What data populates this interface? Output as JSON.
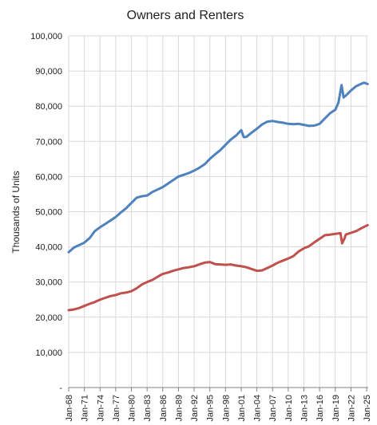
{
  "chart_data": {
    "type": "line",
    "title": "Owners and Renters",
    "xlabel": "",
    "ylabel": "Thousands of Units",
    "ylim": [
      0,
      100000
    ],
    "yticks": [
      0,
      10000,
      20000,
      30000,
      40000,
      50000,
      60000,
      70000,
      80000,
      90000,
      100000
    ],
    "ytick_labels": [
      "-",
      "10,000",
      "20,000",
      "30,000",
      "40,000",
      "50,000",
      "60,000",
      "70,000",
      "80,000",
      "90,000",
      "100,000"
    ],
    "xlim": [
      1968,
      2025.3
    ],
    "xticks": [
      1968,
      1971,
      1974,
      1977,
      1980,
      1983,
      1986,
      1989,
      1992,
      1995,
      1998,
      2001,
      2004,
      2007,
      2010,
      2013,
      2016,
      2019,
      2022,
      2025
    ],
    "xtick_labels": [
      "Jan-68",
      "Jan-71",
      "Jan-74",
      "Jan-77",
      "Jan-80",
      "Jan-83",
      "Jan-86",
      "Jan-89",
      "Jan-92",
      "Jan-95",
      "Jan-98",
      "Jan-01",
      "Jan-04",
      "Jan-07",
      "Jan-10",
      "Jan-13",
      "Jan-16",
      "Jan-19",
      "Jan-22",
      "Jan-25"
    ],
    "grid": true,
    "legend": "none",
    "series": [
      {
        "color": "#4f81bd",
        "points": [
          [
            1968,
            38500
          ],
          [
            1969,
            39800
          ],
          [
            1970,
            40500
          ],
          [
            1971,
            41200
          ],
          [
            1972,
            42500
          ],
          [
            1973,
            44500
          ],
          [
            1974,
            45600
          ],
          [
            1975,
            46500
          ],
          [
            1976,
            47500
          ],
          [
            1977,
            48500
          ],
          [
            1978,
            49800
          ],
          [
            1979,
            51000
          ],
          [
            1980,
            52500
          ],
          [
            1981,
            54000
          ],
          [
            1982,
            54400
          ],
          [
            1983,
            54600
          ],
          [
            1984,
            55600
          ],
          [
            1985,
            56300
          ],
          [
            1986,
            57000
          ],
          [
            1987,
            58000
          ],
          [
            1988,
            59000
          ],
          [
            1989,
            60000
          ],
          [
            1990,
            60500
          ],
          [
            1991,
            61000
          ],
          [
            1992,
            61700
          ],
          [
            1993,
            62500
          ],
          [
            1994,
            63500
          ],
          [
            1995,
            65000
          ],
          [
            1996,
            66300
          ],
          [
            1997,
            67500
          ],
          [
            1998,
            69000
          ],
          [
            1999,
            70500
          ],
          [
            2000,
            71600
          ],
          [
            2001,
            73200
          ],
          [
            2001.5,
            71200
          ],
          [
            2002,
            71300
          ],
          [
            2003,
            72500
          ],
          [
            2004,
            73600
          ],
          [
            2005,
            74800
          ],
          [
            2006,
            75600
          ],
          [
            2007,
            75800
          ],
          [
            2008,
            75500
          ],
          [
            2009,
            75300
          ],
          [
            2010,
            75000
          ],
          [
            2011,
            74900
          ],
          [
            2012,
            75000
          ],
          [
            2013,
            74700
          ],
          [
            2014,
            74400
          ],
          [
            2015,
            74500
          ],
          [
            2016,
            75000
          ],
          [
            2017,
            76500
          ],
          [
            2018,
            78000
          ],
          [
            2019,
            79000
          ],
          [
            2019.6,
            81000
          ],
          [
            2020.2,
            86000
          ],
          [
            2020.6,
            82500
          ],
          [
            2021,
            83000
          ],
          [
            2022,
            84500
          ],
          [
            2023,
            85700
          ],
          [
            2024,
            86400
          ],
          [
            2024.5,
            86700
          ],
          [
            2025.2,
            86300
          ]
        ]
      },
      {
        "color": "#c0504d",
        "points": [
          [
            1968,
            22000
          ],
          [
            1969,
            22200
          ],
          [
            1970,
            22600
          ],
          [
            1971,
            23200
          ],
          [
            1972,
            23800
          ],
          [
            1973,
            24300
          ],
          [
            1974,
            25000
          ],
          [
            1975,
            25500
          ],
          [
            1976,
            26000
          ],
          [
            1977,
            26300
          ],
          [
            1978,
            26800
          ],
          [
            1979,
            27000
          ],
          [
            1980,
            27400
          ],
          [
            1981,
            28200
          ],
          [
            1982,
            29300
          ],
          [
            1983,
            30000
          ],
          [
            1984,
            30600
          ],
          [
            1985,
            31500
          ],
          [
            1986,
            32300
          ],
          [
            1987,
            32700
          ],
          [
            1988,
            33200
          ],
          [
            1989,
            33600
          ],
          [
            1990,
            34000
          ],
          [
            1991,
            34200
          ],
          [
            1992,
            34500
          ],
          [
            1993,
            35000
          ],
          [
            1994,
            35500
          ],
          [
            1995,
            35700
          ],
          [
            1996,
            35100
          ],
          [
            1997,
            35000
          ],
          [
            1998,
            34900
          ],
          [
            1999,
            35000
          ],
          [
            2000,
            34700
          ],
          [
            2001,
            34500
          ],
          [
            2002,
            34200
          ],
          [
            2003,
            33700
          ],
          [
            2004,
            33200
          ],
          [
            2005,
            33300
          ],
          [
            2006,
            34000
          ],
          [
            2007,
            34700
          ],
          [
            2008,
            35500
          ],
          [
            2009,
            36100
          ],
          [
            2010,
            36700
          ],
          [
            2011,
            37400
          ],
          [
            2012,
            38700
          ],
          [
            2013,
            39600
          ],
          [
            2014,
            40200
          ],
          [
            2015,
            41300
          ],
          [
            2016,
            42300
          ],
          [
            2017,
            43300
          ],
          [
            2018,
            43500
          ],
          [
            2019,
            43700
          ],
          [
            2020,
            43900
          ],
          [
            2020.3,
            41000
          ],
          [
            2020.8,
            42500
          ],
          [
            2021,
            43500
          ],
          [
            2022,
            44000
          ],
          [
            2023,
            44500
          ],
          [
            2024,
            45300
          ],
          [
            2025.2,
            46200
          ]
        ]
      }
    ]
  }
}
